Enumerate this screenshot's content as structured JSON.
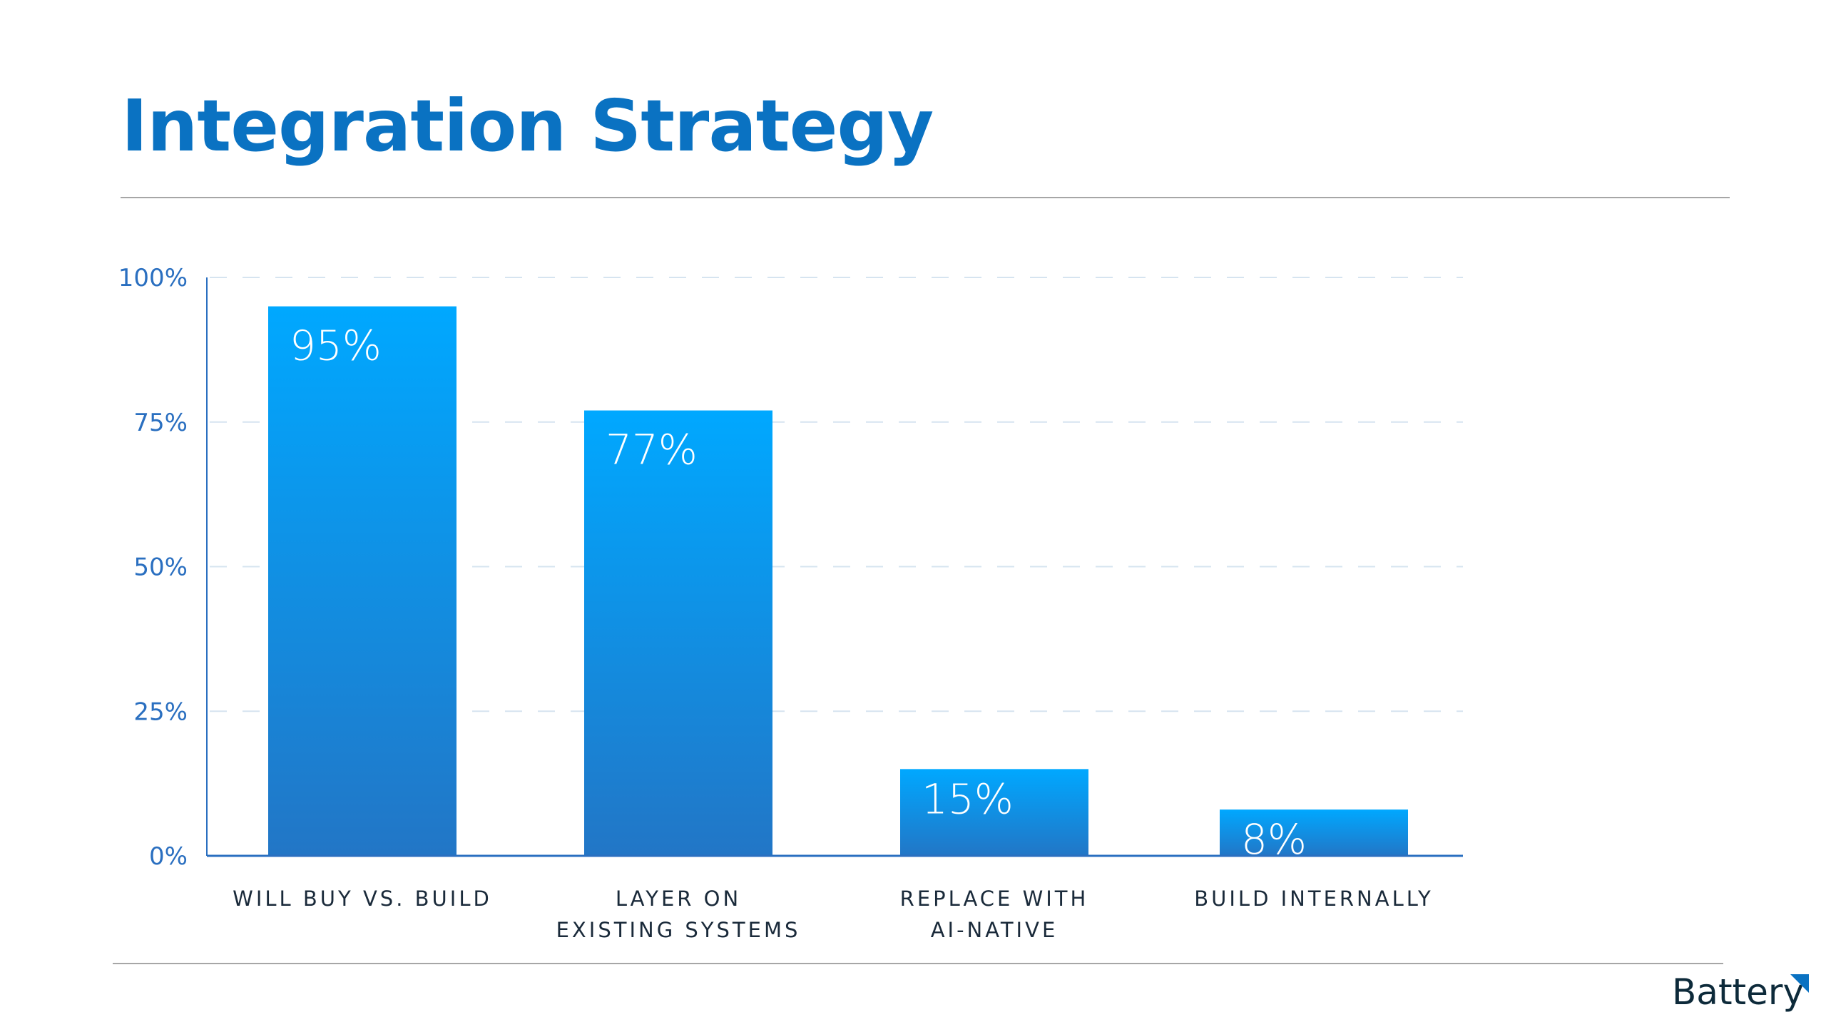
{
  "header": {
    "title": "Integration Strategy"
  },
  "footer": {
    "logo_text": "Battery"
  },
  "colors": {
    "title": "#0a72c2",
    "bar_top": "#00a8ff",
    "bar_bottom": "#2276c6",
    "axis": "#2a6fc0",
    "grid": "#d6e4f0"
  },
  "chart_data": {
    "type": "bar",
    "title": "Integration Strategy",
    "categories": [
      [
        "WILL BUY VS. BUILD"
      ],
      [
        "LAYER ON",
        "EXISTING SYSTEMS"
      ],
      [
        "REPLACE WITH",
        "AI-NATIVE"
      ],
      [
        "BUILD INTERNALLY"
      ]
    ],
    "values": [
      95,
      77,
      15,
      8
    ],
    "value_labels": [
      "95%",
      "77%",
      "15%",
      "8%"
    ],
    "yticks": [
      0,
      25,
      50,
      75,
      100
    ],
    "ytick_labels": [
      "0%",
      "25%",
      "50%",
      "75%",
      "100%"
    ],
    "ylim": [
      0,
      100
    ],
    "xlabel": "",
    "ylabel": "",
    "grid": true
  }
}
